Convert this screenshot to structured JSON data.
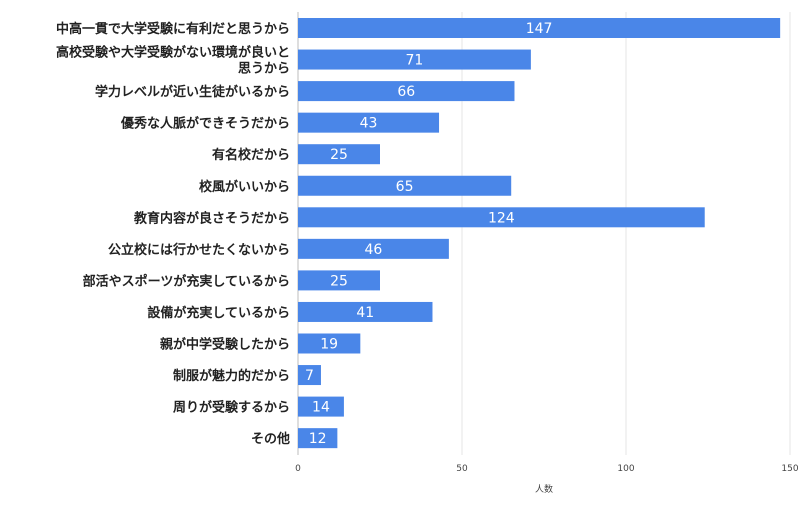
{
  "chart_data": {
    "type": "bar",
    "orientation": "horizontal",
    "categories": [
      "中高一貫で大学受験に有利だと思うから",
      "高校受験や大学受験がない環境が良いと思うから",
      "学力レベルが近い生徒がいるから",
      "優秀な人脈ができそうだから",
      "有名校だから",
      "校風がいいから",
      "教育内容が良さそうだから",
      "公立校には行かせたくないから",
      "部活やスポーツが充実しているから",
      "設備が充実しているから",
      "親が中学受験したから",
      "制服が魅力的だから",
      "周りが受験するから",
      "その他"
    ],
    "category_lines": [
      [
        "中高一貫で大学受験に有利だと思うから"
      ],
      [
        "高校受験や大学受験がない環境が良いと",
        "思うから"
      ],
      [
        "学力レベルが近い生徒がいるから"
      ],
      [
        "優秀な人脈ができそうだから"
      ],
      [
        "有名校だから"
      ],
      [
        "校風がいいから"
      ],
      [
        "教育内容が良さそうだから"
      ],
      [
        "公立校には行かせたくないから"
      ],
      [
        "部活やスポーツが充実しているから"
      ],
      [
        "設備が充実しているから"
      ],
      [
        "親が中学受験したから"
      ],
      [
        "制服が魅力的だから"
      ],
      [
        "周りが受験するから"
      ],
      [
        "その他"
      ]
    ],
    "values": [
      147,
      71,
      66,
      43,
      25,
      65,
      124,
      46,
      25,
      41,
      19,
      7,
      14,
      12
    ],
    "xlabel": "人数",
    "xlim": [
      0,
      150
    ],
    "xticks": [
      0,
      50,
      100,
      150
    ],
    "data_labels": true,
    "legend": "none",
    "grid": true,
    "bar_color": "#4a86e8"
  }
}
